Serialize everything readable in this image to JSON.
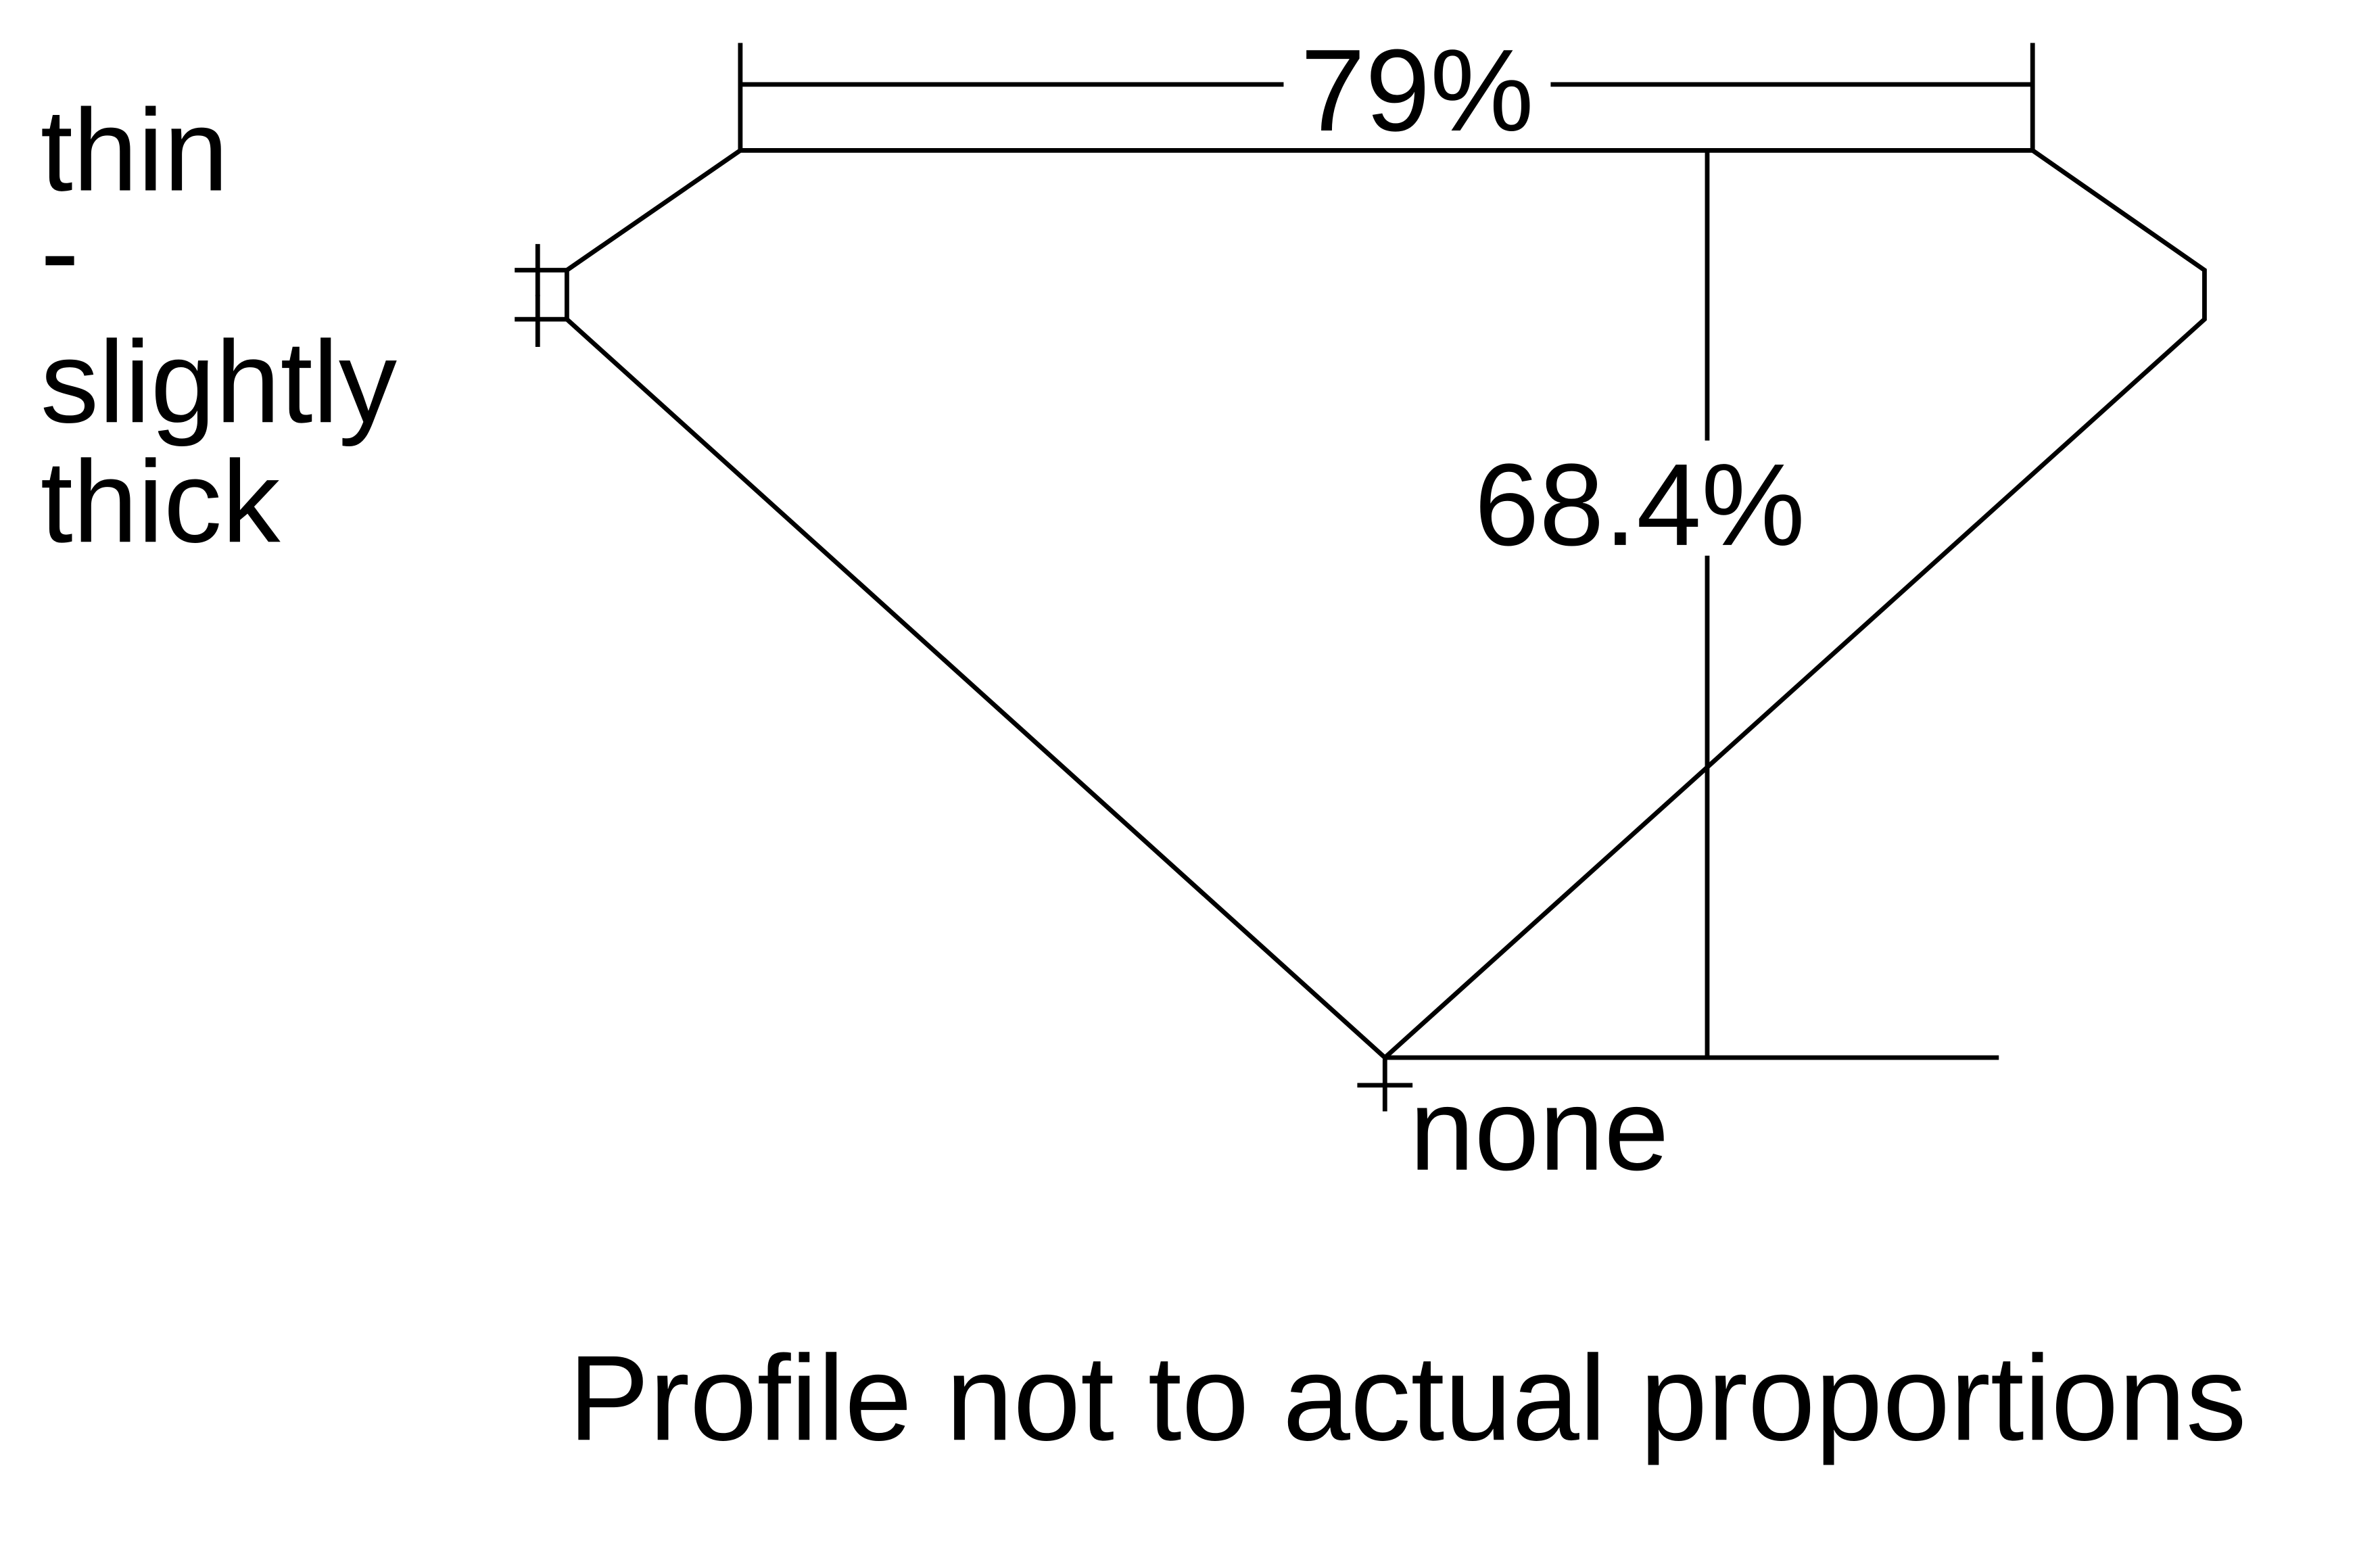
{
  "diagram": {
    "table_width_label": "79%",
    "total_depth_label": "68.4%",
    "girdle_thickness_label": [
      "thin",
      "-",
      "slightly",
      "thick"
    ],
    "culet_label": "none",
    "footnote": "Profile not to actual proportions",
    "line_color": "#000000",
    "background_color": "#ffffff"
  }
}
